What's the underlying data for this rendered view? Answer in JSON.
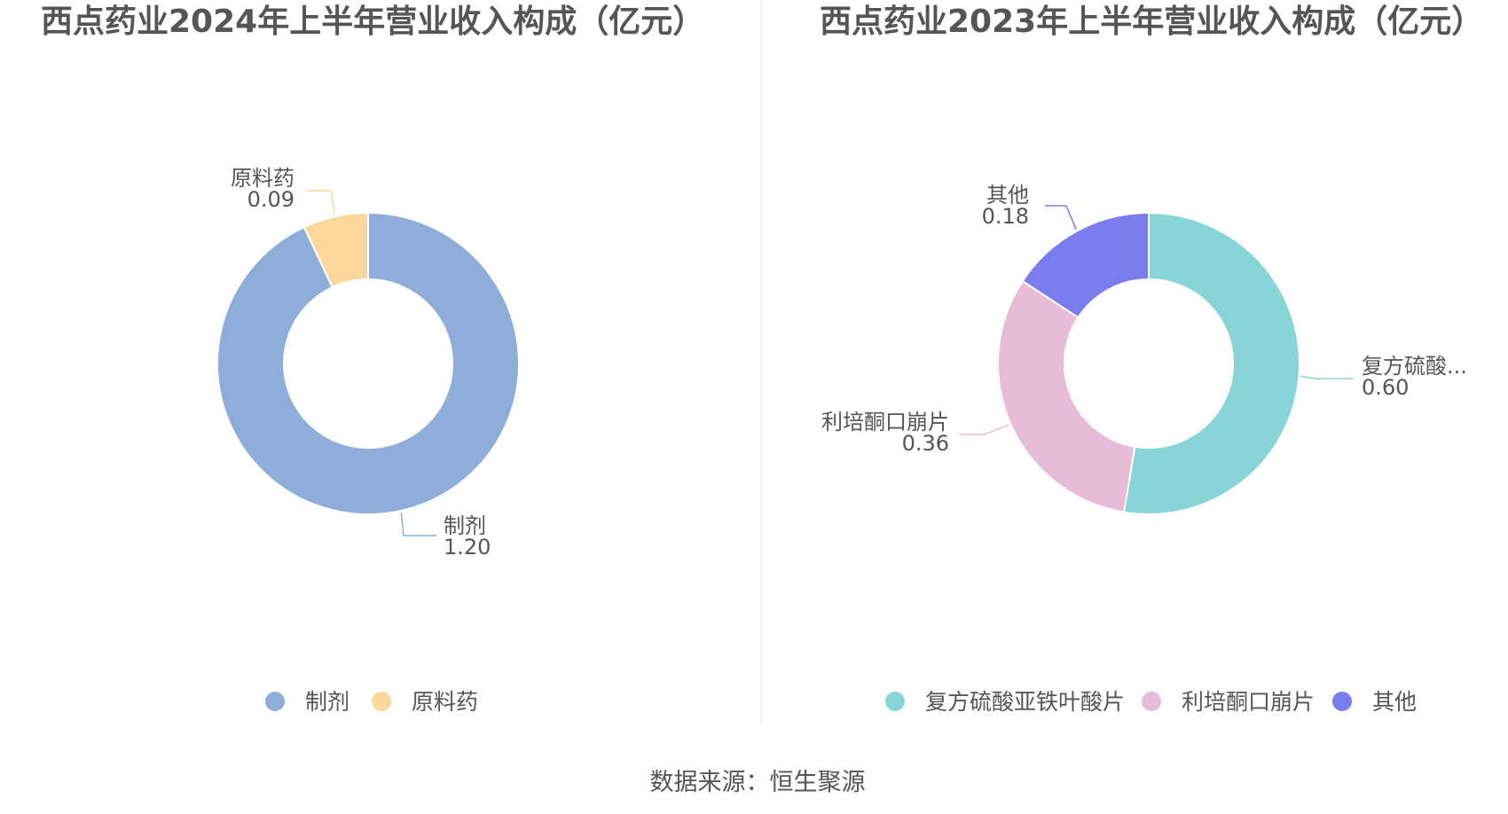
{
  "source": "数据来源：恒生聚源",
  "chart_data": [
    {
      "type": "pie",
      "title": "西点药业2024年上半年营业收入构成（亿元）",
      "unit": "亿元",
      "donut": true,
      "legend_position": "bottom",
      "slices": [
        {
          "name": "制剂",
          "value": 1.2,
          "value_label": "1.20",
          "label": "制剂",
          "color": "#8eadd9"
        },
        {
          "name": "原料药",
          "value": 0.09,
          "value_label": "0.09",
          "label": "原料药",
          "color": "#fcd79b"
        }
      ]
    },
    {
      "type": "pie",
      "title": "西点药业2023年上半年营业收入构成（亿元）",
      "unit": "亿元",
      "donut": true,
      "legend_position": "bottom",
      "slices": [
        {
          "name": "复方硫酸亚铁叶酸片",
          "value": 0.6,
          "value_label": "0.60",
          "label": "复方硫酸...",
          "color": "#88d5d8"
        },
        {
          "name": "利培酮口崩片",
          "value": 0.36,
          "value_label": "0.36",
          "label": "利培酮口崩片",
          "color": "#e8bbd9"
        },
        {
          "name": "其他",
          "value": 0.18,
          "value_label": "0.18",
          "label": "其他",
          "color": "#7b7cf0"
        }
      ]
    }
  ]
}
